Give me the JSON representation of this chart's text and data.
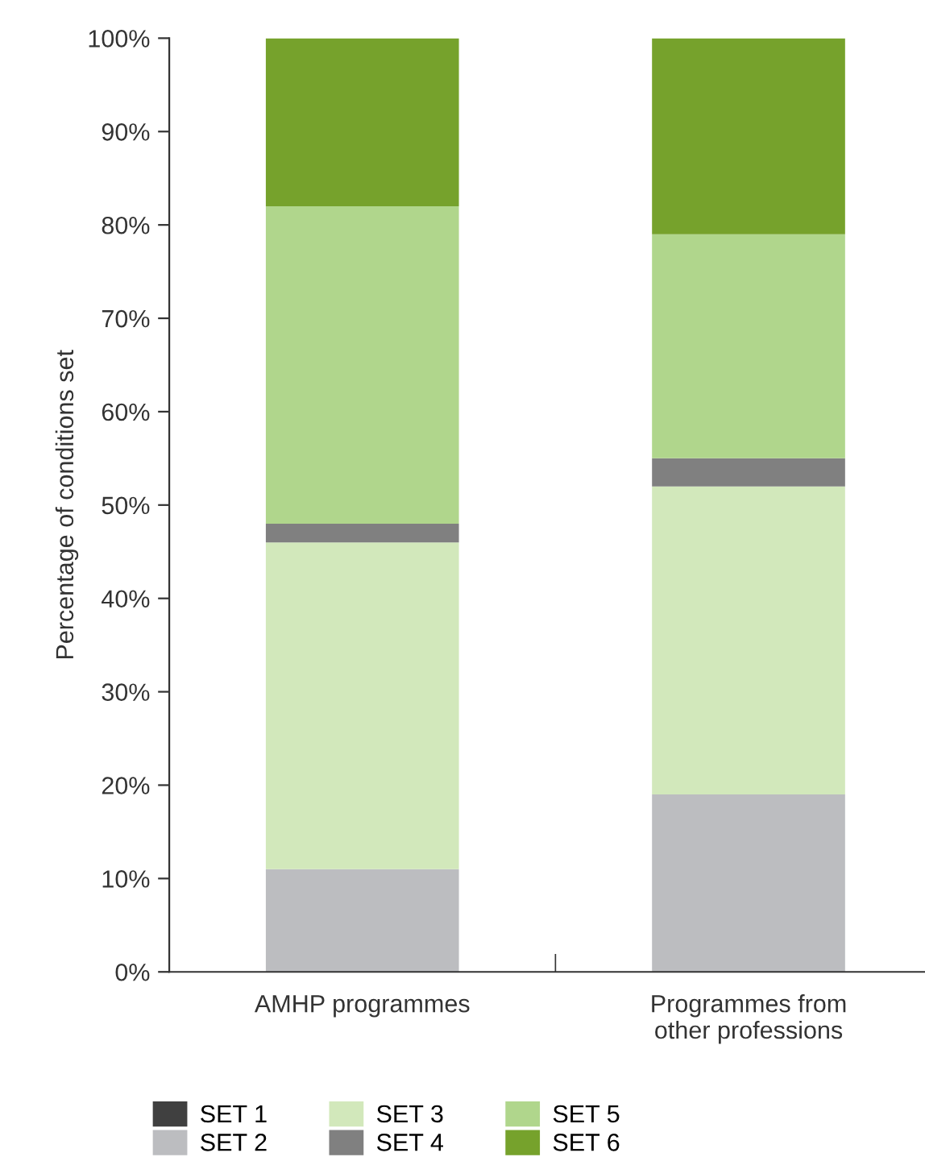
{
  "chart_data": {
    "type": "bar",
    "stacked": true,
    "ylabel": "Percentage of conditions set",
    "categories": [
      "AMHP programmes",
      "Programmes from\nother professions"
    ],
    "series": [
      {
        "name": "SET 1",
        "color": "#404040",
        "values": [
          0,
          0
        ]
      },
      {
        "name": "SET 2",
        "color": "#bcbdc0",
        "values": [
          11,
          19
        ]
      },
      {
        "name": "SET 3",
        "color": "#d2e8bb",
        "values": [
          35,
          33
        ]
      },
      {
        "name": "SET 4",
        "color": "#808080",
        "values": [
          2,
          3
        ]
      },
      {
        "name": "SET 5",
        "color": "#b0d68c",
        "values": [
          34,
          24
        ]
      },
      {
        "name": "SET 6",
        "color": "#76a22c",
        "values": [
          18,
          21
        ]
      }
    ],
    "ylim": [
      0,
      100
    ],
    "yticks": [
      {
        "value": 0,
        "label": "0%"
      },
      {
        "value": 10,
        "label": "10%"
      },
      {
        "value": 20,
        "label": "20%"
      },
      {
        "value": 30,
        "label": "30%"
      },
      {
        "value": 40,
        "label": "40%"
      },
      {
        "value": 50,
        "label": "50%"
      },
      {
        "value": 60,
        "label": "60%"
      },
      {
        "value": 70,
        "label": "70%"
      },
      {
        "value": 80,
        "label": "80%"
      },
      {
        "value": 90,
        "label": "90%"
      },
      {
        "value": 100,
        "label": "100%"
      }
    ],
    "grid": false,
    "legend": "bottom"
  }
}
